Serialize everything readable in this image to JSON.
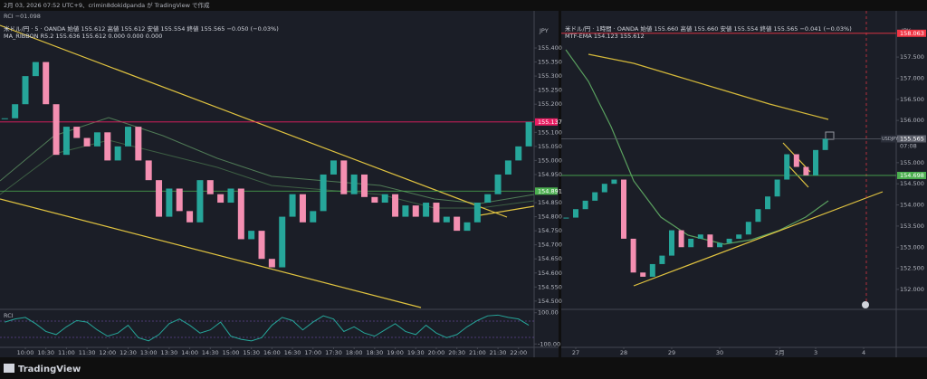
{
  "header": "2月 03, 2026 07:52 UTC+9、crimin8dokidpanda が TradingView で作成",
  "footer": "TradingView",
  "chart_data": [
    {
      "type": "candlestick",
      "indicator_label": "RCI  −01.098",
      "legend": [
        "米ドル/円 · 5 · OANDA  始値 155.612  高値 155.612  安値 155.554  終値 155.565  −0.050 (−0.03%)",
        "MA_RIBBON R5.2  155.636  155.612  0.000  0.000  0.000"
      ],
      "currency": "JPY",
      "x": [
        9.5,
        9.75,
        10,
        10.25,
        10.5,
        10.75,
        11,
        11.25,
        11.5,
        11.75,
        12,
        12.25,
        12.5,
        12.75,
        13,
        13.25,
        13.5,
        13.75,
        14,
        14.25,
        14.5,
        14.75,
        15,
        15.25,
        15.5,
        15.75,
        16,
        16.25,
        16.5,
        16.75,
        17,
        17.25,
        17.5,
        17.75,
        18,
        18.25,
        18.5,
        18.75,
        19,
        19.25,
        19.5,
        19.75,
        20,
        20.25,
        20.5,
        20.75,
        21,
        21.25,
        21.5,
        21.75,
        22,
        22.25
      ],
      "values": [
        155.15,
        155.2,
        155.3,
        155.35,
        155.2,
        155.02,
        155.12,
        155.08,
        155.05,
        155.1,
        155.0,
        155.05,
        155.12,
        155.0,
        154.93,
        154.8,
        154.9,
        154.82,
        154.78,
        154.93,
        154.88,
        154.85,
        154.9,
        154.72,
        154.75,
        154.65,
        154.62,
        154.8,
        154.88,
        154.78,
        154.82,
        154.95,
        155.0,
        154.88,
        154.95,
        154.87,
        154.85,
        154.88,
        154.8,
        154.84,
        154.8,
        154.85,
        154.78,
        154.8,
        154.75,
        154.78,
        154.85,
        154.88,
        154.95,
        155.0,
        155.05,
        155.137
      ],
      "up_color": "#26a69a",
      "down_color": "#f48fb1",
      "xlim": [
        9.383,
        22.38
      ],
      "ylim": [
        154.477,
        155.532
      ],
      "yticks": [
        {
          "value": 155.4,
          "label": "155.400"
        },
        {
          "value": 155.35,
          "label": "155.350"
        },
        {
          "value": 155.3,
          "label": "155.300"
        },
        {
          "value": 155.25,
          "label": "155.250"
        },
        {
          "value": 155.2,
          "label": "155.200"
        },
        {
          "value": 155.1,
          "label": "155.100"
        },
        {
          "value": 155.05,
          "label": "155.050"
        },
        {
          "value": 155.0,
          "label": "155.000"
        },
        {
          "value": 154.95,
          "label": "154.950"
        },
        {
          "value": 154.85,
          "label": "154.850"
        },
        {
          "value": 154.8,
          "label": "154.800"
        },
        {
          "value": 154.75,
          "label": "154.750"
        },
        {
          "value": 154.7,
          "label": "154.700"
        },
        {
          "value": 154.65,
          "label": "154.650"
        },
        {
          "value": 154.6,
          "label": "154.600"
        },
        {
          "value": 154.55,
          "label": "154.550"
        },
        {
          "value": 154.5,
          "label": "154.500"
        }
      ],
      "xticks": [
        {
          "value": 10,
          "label": "10:00"
        },
        {
          "value": 10.5,
          "label": "10:30"
        },
        {
          "value": 11,
          "label": "11:00"
        },
        {
          "value": 11.5,
          "label": "11:30"
        },
        {
          "value": 12,
          "label": "12:00"
        },
        {
          "value": 12.5,
          "label": "12:30"
        },
        {
          "value": 13,
          "label": "13:00"
        },
        {
          "value": 13.5,
          "label": "13:30"
        },
        {
          "value": 14,
          "label": "14:00"
        },
        {
          "value": 14.5,
          "label": "14:30"
        },
        {
          "value": 15,
          "label": "15:00"
        },
        {
          "value": 15.5,
          "label": "15:30"
        },
        {
          "value": 16,
          "label": "16:00"
        },
        {
          "value": 16.5,
          "label": "16:30"
        },
        {
          "value": 17,
          "label": "17:00"
        },
        {
          "value": 17.5,
          "label": "17:30"
        },
        {
          "value": 18,
          "label": "18:00"
        },
        {
          "value": 18.5,
          "label": "18:30"
        },
        {
          "value": 19,
          "label": "19:00"
        },
        {
          "value": 19.5,
          "label": "19:30"
        },
        {
          "value": 20,
          "label": "20:00"
        },
        {
          "value": 20.5,
          "label": "20:30"
        },
        {
          "value": 21,
          "label": "21:00"
        },
        {
          "value": 21.5,
          "label": "21:30"
        },
        {
          "value": 22,
          "label": "22:00"
        }
      ],
      "markers": [
        {
          "value": 155.137,
          "color": "#e91e63"
        },
        {
          "value": 154.891,
          "color": "#4caf50"
        }
      ],
      "rci": {
        "name": "RCI",
        "color": "#26a69a",
        "ylim": [
          -110,
          110
        ],
        "yticks": [
          {
            "value": 100,
            "label": "100.00"
          },
          {
            "value": -100,
            "label": "-100.00"
          }
        ],
        "values": [
          40,
          60,
          70,
          30,
          -20,
          -40,
          10,
          50,
          40,
          -10,
          -50,
          -30,
          20,
          -60,
          -80,
          -40,
          30,
          60,
          20,
          -30,
          -10,
          40,
          -50,
          -70,
          -80,
          -60,
          20,
          70,
          50,
          -10,
          40,
          80,
          60,
          -20,
          10,
          -30,
          -50,
          -10,
          30,
          -20,
          -40,
          20,
          -30,
          -60,
          -40,
          10,
          50,
          80,
          85,
          70,
          60,
          20
        ]
      }
    },
    {
      "type": "candlestick",
      "legend": [
        "米ドル/円 · 1時間 · OANDA  始値 155.660  高値 155.660  安値 155.554  終値 155.565  −0.041 (−0.03%)",
        "MTF-EMA  154.123  155.612"
      ],
      "currency": "JPY",
      "symbol": "USDJPY",
      "countdown": "07:08",
      "x": [
        -0.2,
        0,
        0.2,
        0.4,
        0.6,
        0.8,
        1,
        1.2,
        1.4,
        1.6,
        1.8,
        2,
        2.2,
        2.4,
        2.6,
        2.8,
        3,
        3.2,
        3.4,
        3.6,
        3.8,
        4,
        4.2,
        4.4,
        4.6,
        4.8,
        5,
        5.2
      ],
      "values": [
        153.7,
        153.9,
        154.1,
        154.3,
        154.5,
        154.6,
        153.2,
        152.4,
        152.3,
        152.6,
        152.8,
        153.4,
        153.0,
        153.2,
        153.3,
        153.0,
        153.1,
        153.2,
        153.3,
        153.6,
        153.9,
        154.2,
        154.6,
        155.2,
        154.9,
        154.7,
        155.3,
        155.565
      ],
      "up_color": "#26a69a",
      "down_color": "#f48fb1",
      "xlim": [
        -0.302,
        6.679
      ],
      "ylim": [
        151.571,
        158.594
      ],
      "yticks": [
        {
          "value": 157.5,
          "label": "157.500"
        },
        {
          "value": 157,
          "label": "157.000"
        },
        {
          "value": 156.5,
          "label": "156.500"
        },
        {
          "value": 156,
          "label": "156.000"
        },
        {
          "value": 155,
          "label": "155.000"
        },
        {
          "value": 154.5,
          "label": "154.500"
        },
        {
          "value": 154,
          "label": "154.000"
        },
        {
          "value": 153.5,
          "label": "153.500"
        },
        {
          "value": 153,
          "label": "153.000"
        },
        {
          "value": 152.5,
          "label": "152.500"
        },
        {
          "value": 152,
          "label": "152.000"
        }
      ],
      "xticks": [
        {
          "value": 0,
          "label": "27"
        },
        {
          "value": 1,
          "label": "28"
        },
        {
          "value": 2,
          "label": "29"
        },
        {
          "value": 3,
          "label": "30"
        },
        {
          "value": 4.25,
          "label": "2月"
        },
        {
          "value": 5,
          "label": "3"
        },
        {
          "value": 6,
          "label": "4"
        }
      ],
      "markers": [
        {
          "value": 158.063,
          "color": "#f23645"
        },
        {
          "value": 155.565,
          "color": "#5d606b"
        },
        {
          "value": 154.698,
          "color": "#4caf50"
        }
      ]
    }
  ]
}
